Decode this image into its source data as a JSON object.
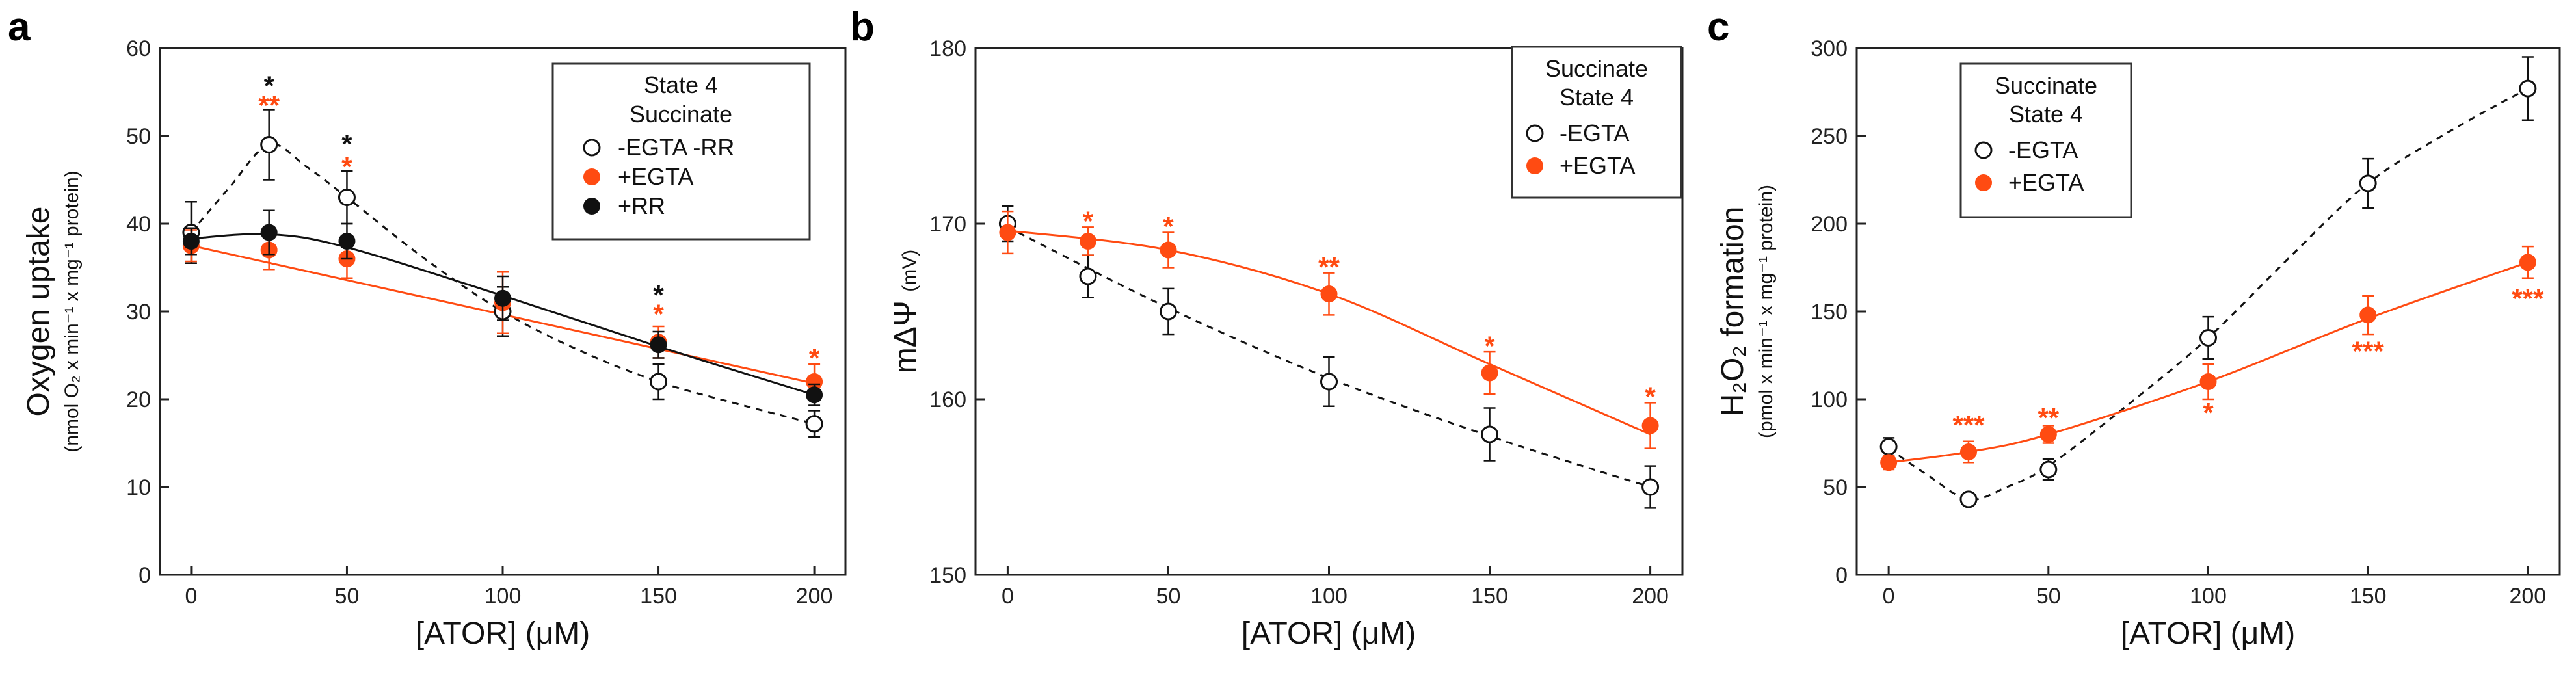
{
  "colors": {
    "black": "#111111",
    "orange": "#ff4b12",
    "axis": "#222222"
  },
  "chart_data": [
    {
      "type": "line",
      "panel": "a",
      "xlabel_main": "[ATOR]",
      "xlabel_unit": "(μM)",
      "ylabel_main": "Oxygen uptake",
      "ylabel_sub": "(nmol O₂ x min⁻¹ x mg⁻¹ protein)",
      "xlim": [
        -10,
        210
      ],
      "ylim": [
        0,
        60
      ],
      "xticks": [
        0,
        50,
        100,
        150,
        200
      ],
      "yticks": [
        0,
        10,
        20,
        30,
        40,
        50,
        60
      ],
      "legend": {
        "title_lines": [
          "State 4",
          "Succinate"
        ],
        "entries": [
          "-EGTA -RR",
          "+EGTA",
          "+RR"
        ]
      },
      "series": [
        {
          "name": "-EGTA -RR",
          "marker": "open",
          "color": "#111111",
          "line": "dashed",
          "fit": "smooth",
          "x": [
            0,
            25,
            50,
            100,
            150,
            200
          ],
          "y": [
            39,
            49,
            43,
            30,
            22,
            17.2
          ],
          "err": [
            3.5,
            4,
            3,
            2.8,
            2,
            1.5
          ]
        },
        {
          "name": "+EGTA",
          "marker": "filled",
          "color": "#ff4b12",
          "line": "solid",
          "fit": "regression",
          "x": [
            0,
            25,
            50,
            100,
            150,
            200
          ],
          "y": [
            37.5,
            37,
            36,
            31,
            26.5,
            22
          ],
          "err": [
            1.8,
            2.2,
            2.2,
            3.5,
            1.8,
            2
          ]
        },
        {
          "name": "+RR",
          "marker": "filled",
          "color": "#111111",
          "line": "solid",
          "fit": "regression",
          "x": [
            0,
            25,
            50,
            100,
            150,
            200
          ],
          "y": [
            38,
            39,
            38,
            31.5,
            26.2,
            20.5
          ],
          "err": [
            1.5,
            2.5,
            2,
            2.5,
            1.5,
            1.2
          ]
        }
      ],
      "fits": {
        "-EGTA -RR": [
          [
            0,
            39
          ],
          [
            12,
            44
          ],
          [
            25,
            49
          ],
          [
            37,
            46.5
          ],
          [
            50,
            43
          ],
          [
            75,
            36
          ],
          [
            100,
            30
          ],
          [
            125,
            25.5
          ],
          [
            150,
            22
          ],
          [
            175,
            19.5
          ],
          [
            200,
            17.2
          ]
        ],
        "+EGTA": [
          [
            0,
            37.5
          ],
          [
            200,
            21.8
          ]
        ],
        "+RR": [
          [
            0,
            38.3
          ],
          [
            25,
            38.8
          ],
          [
            50,
            37.3
          ],
          [
            100,
            31.8
          ],
          [
            150,
            26
          ],
          [
            200,
            20.5
          ]
        ]
      },
      "annotations": [
        {
          "x": 25,
          "y": 55.8,
          "text": "*",
          "color": "#111111"
        },
        {
          "x": 25,
          "y": 53.6,
          "text": "**",
          "color": "#ff4b12"
        },
        {
          "x": 50,
          "y": 49.2,
          "text": "*",
          "color": "#111111"
        },
        {
          "x": 50,
          "y": 46.6,
          "text": "*",
          "color": "#ff4b12"
        },
        {
          "x": 150,
          "y": 32.0,
          "text": "*",
          "color": "#111111"
        },
        {
          "x": 150,
          "y": 29.8,
          "text": "*",
          "color": "#ff4b12"
        },
        {
          "x": 200,
          "y": 24.8,
          "text": "*",
          "color": "#ff4b12"
        }
      ]
    },
    {
      "type": "line",
      "panel": "b",
      "xlabel_main": "[ATOR]",
      "xlabel_unit": "(μM)",
      "ylabel_main": "mΔΨ",
      "ylabel_sub": "(mV)",
      "xlim": [
        -10,
        210
      ],
      "ylim": [
        150,
        180
      ],
      "xticks": [
        0,
        50,
        100,
        150,
        200
      ],
      "yticks": [
        150,
        160,
        170,
        180
      ],
      "legend": {
        "title_lines": [
          "Succinate",
          "State 4"
        ],
        "entries": [
          "-EGTA",
          "+EGTA"
        ]
      },
      "series": [
        {
          "name": "-EGTA",
          "marker": "open",
          "color": "#111111",
          "line": "dashed",
          "fit": "smooth",
          "x": [
            0,
            25,
            50,
            100,
            150,
            200
          ],
          "y": [
            170,
            167,
            165,
            161,
            158,
            155
          ],
          "err": [
            1,
            1.2,
            1.3,
            1.4,
            1.5,
            1.2
          ]
        },
        {
          "name": "+EGTA",
          "marker": "filled",
          "color": "#ff4b12",
          "line": "solid",
          "fit": "smooth",
          "x": [
            0,
            25,
            50,
            100,
            150,
            200
          ],
          "y": [
            169.5,
            169,
            168.5,
            166,
            161.5,
            158.5
          ],
          "err": [
            1.2,
            0.8,
            1,
            1.2,
            1.2,
            1.3
          ]
        }
      ],
      "fits": {
        "-EGTA": [
          [
            0,
            169.8
          ],
          [
            50,
            165.2
          ],
          [
            100,
            161.2
          ],
          [
            150,
            157.9
          ],
          [
            200,
            155
          ]
        ],
        "+EGTA": [
          [
            0,
            169.6
          ],
          [
            50,
            168.5
          ],
          [
            100,
            166
          ],
          [
            150,
            162
          ],
          [
            200,
            158
          ]
        ]
      },
      "annotations": [
        {
          "x": 25,
          "y": 170.2,
          "text": "*",
          "color": "#ff4b12"
        },
        {
          "x": 50,
          "y": 169.9,
          "text": "*",
          "color": "#ff4b12"
        },
        {
          "x": 100,
          "y": 167.6,
          "text": "**",
          "color": "#ff4b12"
        },
        {
          "x": 150,
          "y": 163.1,
          "text": "*",
          "color": "#ff4b12"
        },
        {
          "x": 200,
          "y": 160.2,
          "text": "*",
          "color": "#ff4b12"
        }
      ]
    },
    {
      "type": "line",
      "panel": "c",
      "xlabel_main": "[ATOR]",
      "xlabel_unit": "(μM)",
      "ylabel_main": "H₂O₂ formation",
      "ylabel_sub": "(pmol x min⁻¹ x mg⁻¹ protein)",
      "xlim": [
        -10,
        210
      ],
      "ylim": [
        0,
        300
      ],
      "xticks": [
        0,
        50,
        100,
        150,
        200
      ],
      "yticks": [
        0,
        50,
        100,
        150,
        200,
        250,
        300
      ],
      "legend": {
        "title_lines": [
          "Succinate",
          "State 4"
        ],
        "entries": [
          "-EGTA",
          "+EGTA"
        ]
      },
      "series": [
        {
          "name": "-EGTA",
          "marker": "open",
          "color": "#111111",
          "line": "dashed",
          "fit": "smooth",
          "x": [
            0,
            25,
            50,
            100,
            150,
            200
          ],
          "y": [
            73,
            43,
            60,
            135,
            223,
            277
          ],
          "err": [
            5,
            3,
            6,
            12,
            14,
            18
          ]
        },
        {
          "name": "+EGTA",
          "marker": "filled",
          "color": "#ff4b12",
          "line": "solid",
          "fit": "smooth",
          "x": [
            0,
            25,
            50,
            100,
            150,
            200
          ],
          "y": [
            64,
            70,
            80,
            110,
            148,
            178
          ],
          "err": [
            4,
            6,
            5,
            10,
            11,
            9
          ]
        }
      ],
      "fits": {
        "-EGTA": [
          [
            0,
            72
          ],
          [
            12,
            57
          ],
          [
            25,
            43
          ],
          [
            37,
            50
          ],
          [
            50,
            62
          ],
          [
            75,
            97
          ],
          [
            100,
            135
          ],
          [
            125,
            180
          ],
          [
            150,
            223
          ],
          [
            175,
            252
          ],
          [
            200,
            277
          ]
        ],
        "+EGTA": [
          [
            0,
            64
          ],
          [
            25,
            70
          ],
          [
            50,
            80
          ],
          [
            100,
            110
          ],
          [
            150,
            146
          ],
          [
            200,
            178
          ]
        ]
      },
      "annotations": [
        {
          "x": 25,
          "y": 86,
          "text": "***",
          "color": "#ff4b12"
        },
        {
          "x": 50,
          "y": 90,
          "text": "**",
          "color": "#ff4b12"
        },
        {
          "x": 100,
          "y": 93,
          "text": "*",
          "color": "#ff4b12"
        },
        {
          "x": 150,
          "y": 128,
          "text": "***",
          "color": "#ff4b12"
        },
        {
          "x": 200,
          "y": 158,
          "text": "***",
          "color": "#ff4b12"
        }
      ]
    }
  ]
}
